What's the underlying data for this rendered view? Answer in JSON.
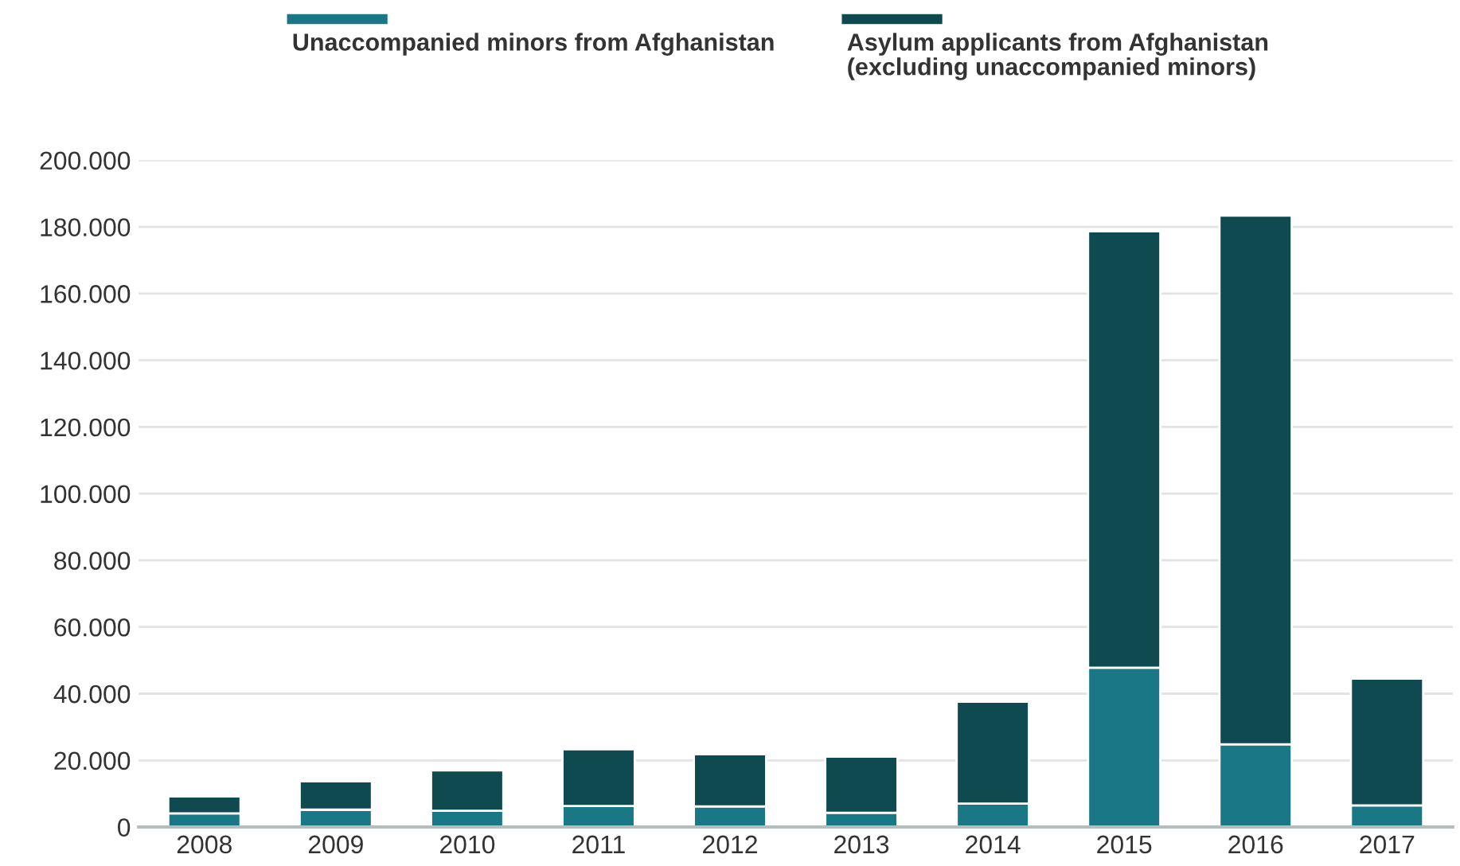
{
  "chart_data": {
    "type": "bar",
    "stacked": true,
    "categories": [
      "2008",
      "2009",
      "2010",
      "2011",
      "2012",
      "2013",
      "2014",
      "2015",
      "2016",
      "2017"
    ],
    "series": [
      {
        "name": "Unaccompanied minors from Afghanistan",
        "color": "#1a7886",
        "values": [
          4100,
          5200,
          4900,
          6300,
          6200,
          4300,
          7000,
          47800,
          24800,
          6500
        ]
      },
      {
        "name": "Asylum applicants from Afghanistan (excluding unaccompanied minors)",
        "color": "#0f4a50",
        "values": [
          5100,
          8500,
          12100,
          17000,
          15600,
          16800,
          30600,
          130900,
          158600,
          38000
        ]
      }
    ],
    "ylim": [
      0,
      200000
    ],
    "yticks": [
      0,
      {
        "value": 20000,
        "label": "20.000"
      },
      {
        "value": 40000,
        "label": "40.000"
      },
      {
        "value": 60000,
        "label": "60.000"
      },
      {
        "value": 80000,
        "label": "80.000"
      },
      {
        "value": 100000,
        "label": "100.000"
      },
      {
        "value": 120000,
        "label": "120.000"
      },
      {
        "value": 140000,
        "label": "140.000"
      },
      {
        "value": 160000,
        "label": "160.000"
      },
      {
        "value": 180000,
        "label": "180.000"
      },
      {
        "value": 200000,
        "label": "200.000"
      }
    ],
    "grid": "y",
    "legend": "top"
  }
}
